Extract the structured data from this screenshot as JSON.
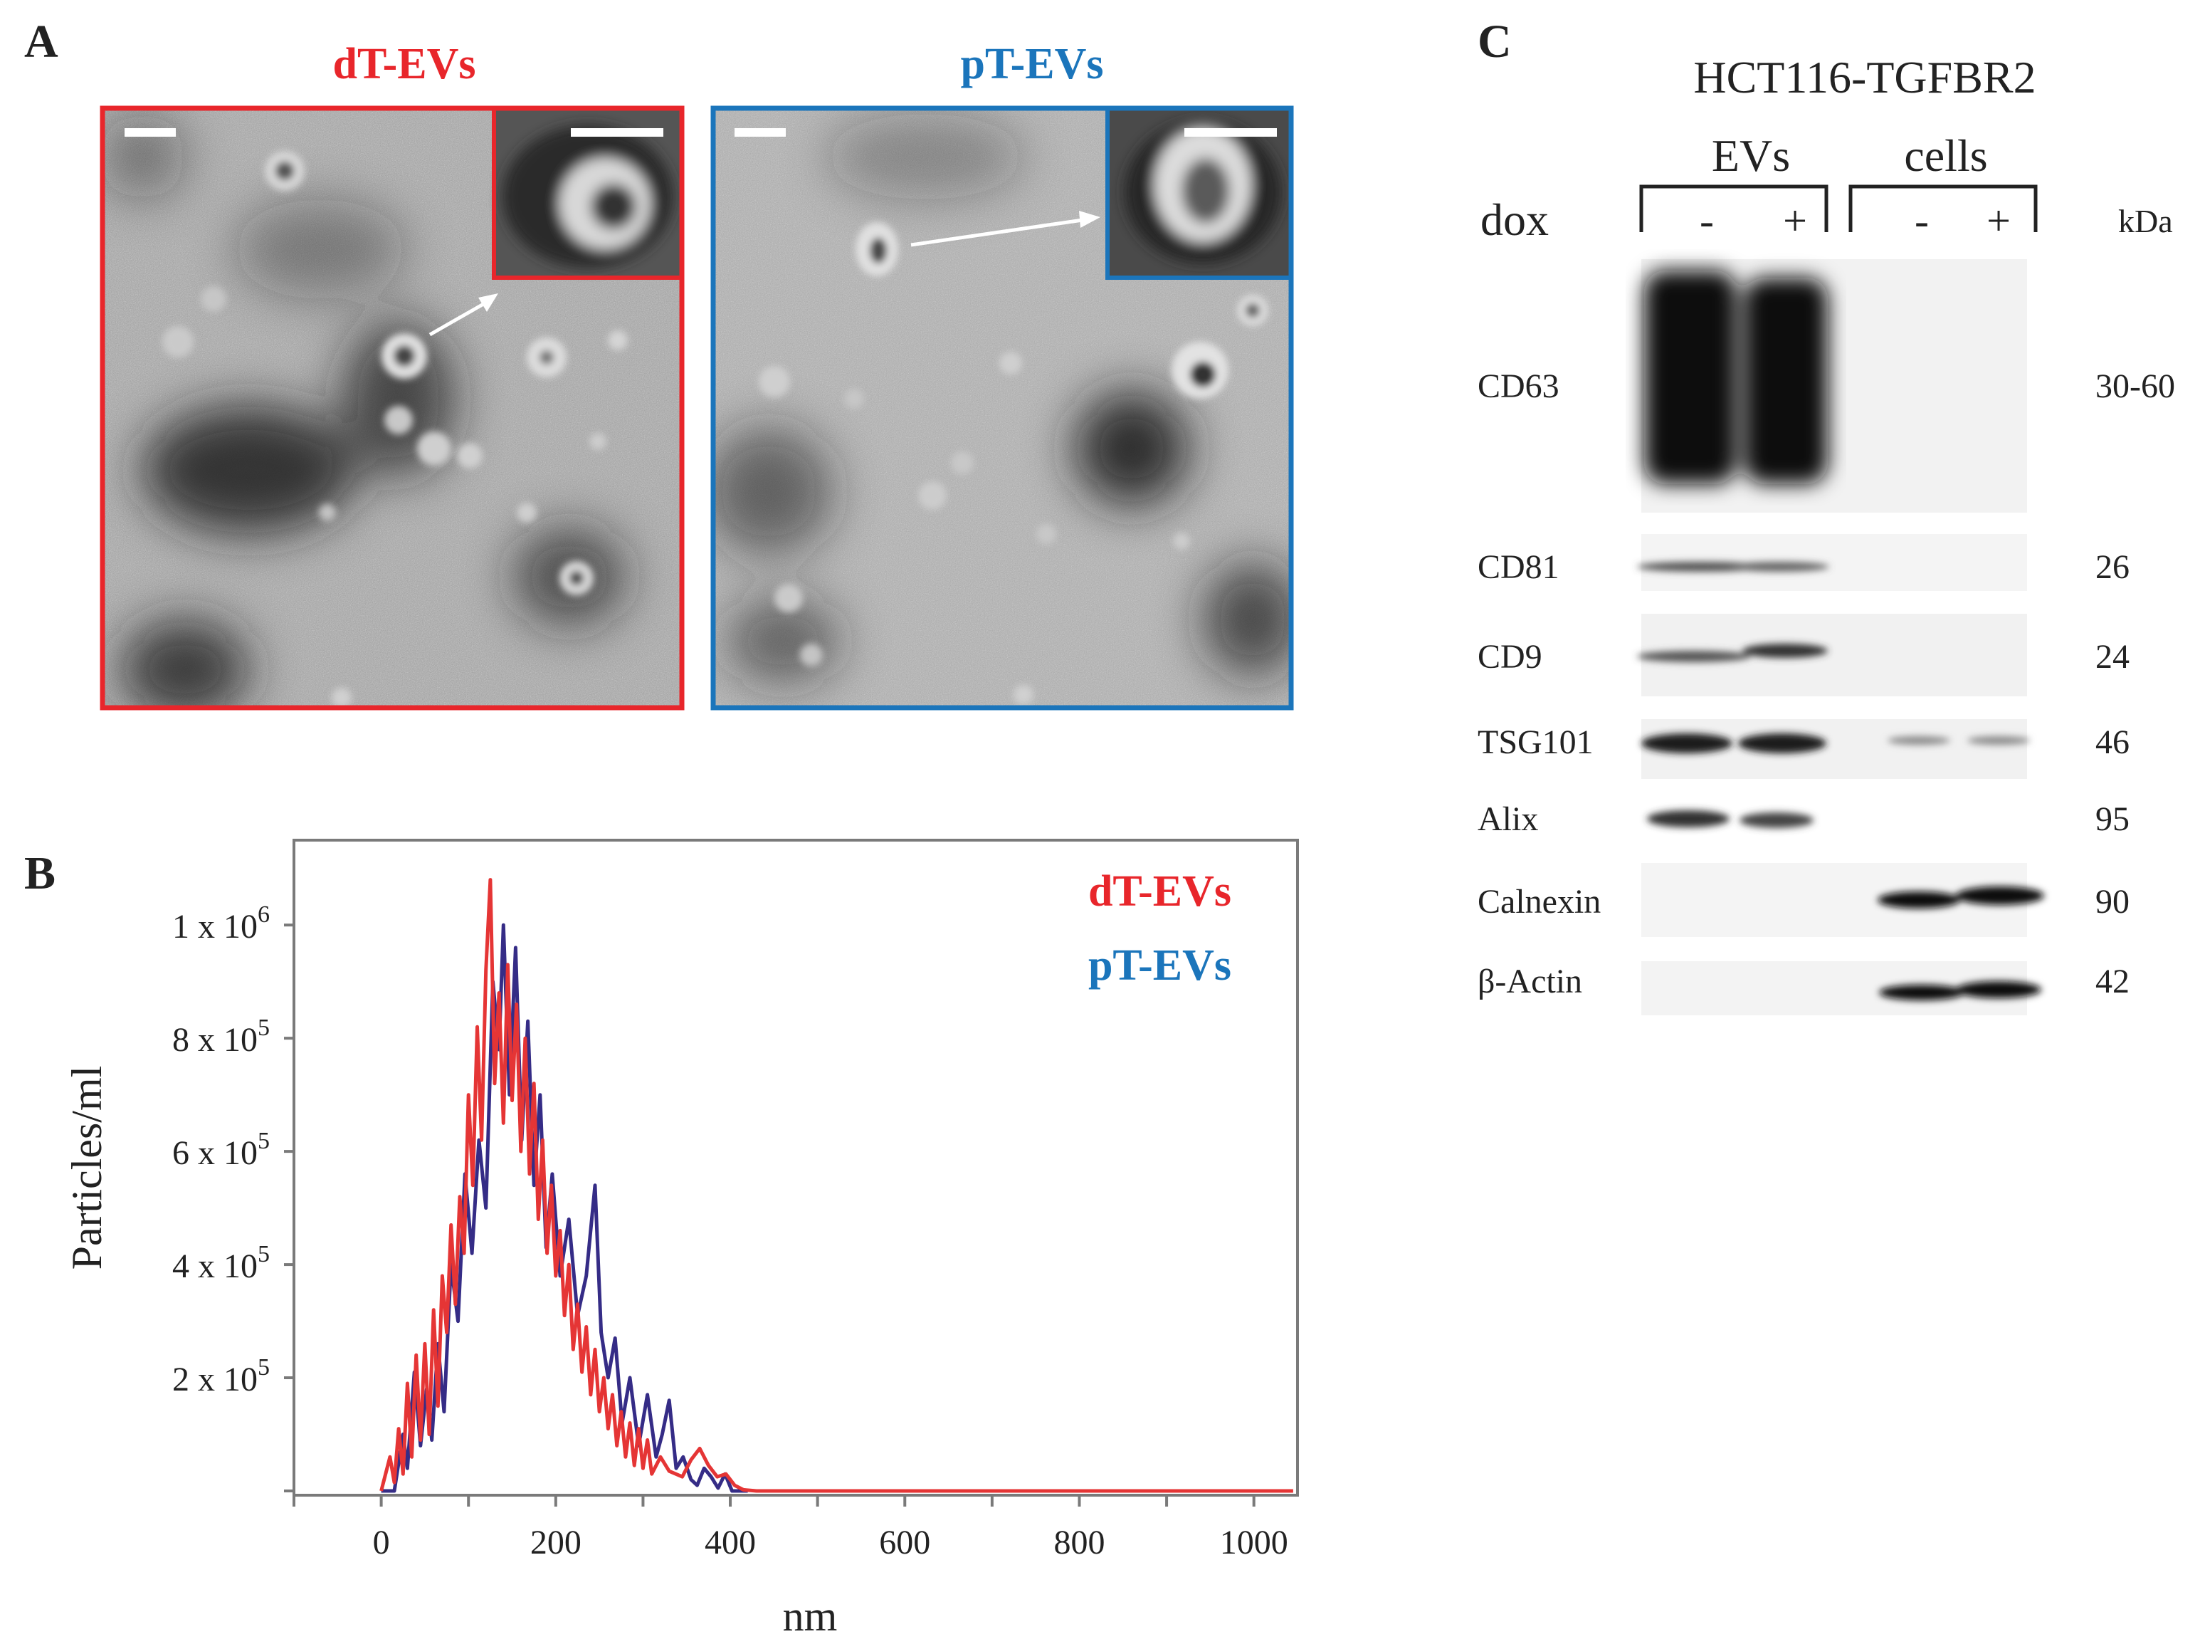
{
  "panels": {
    "a": {
      "letter": "A",
      "left_title": "dT-EVs",
      "right_title": "pT-EVs",
      "colors": {
        "left": "#e8262b",
        "right": "#1b75bb"
      }
    },
    "b": {
      "letter": "B"
    },
    "c": {
      "letter": "C",
      "title": "HCT116-TGFBR2",
      "group_evs": "EVs",
      "group_cells": "cells",
      "dox_label": "dox",
      "lane_signs": [
        "-",
        "+",
        "-",
        "+"
      ],
      "unit": "kDa",
      "rows": [
        {
          "protein": "CD63",
          "kda": "30-60"
        },
        {
          "protein": "CD81",
          "kda": "26"
        },
        {
          "protein": "CD9",
          "kda": "24"
        },
        {
          "protein": "TSG101",
          "kda": "46"
        },
        {
          "protein": "Alix",
          "kda": "95"
        },
        {
          "protein": "Calnexin",
          "kda": "90"
        },
        {
          "protein": "β-Actin",
          "kda": "42"
        }
      ]
    }
  },
  "chart_data": {
    "type": "line",
    "xlabel": "nm",
    "ylabel": "Particles/ml",
    "xlim": [
      -100,
      1050
    ],
    "ylim": [
      0,
      1150000
    ],
    "x_ticks": [
      0,
      200,
      400,
      600,
      800,
      1000
    ],
    "y_ticks": [
      {
        "value": 200000,
        "mant": "2 x 10",
        "exp": "5"
      },
      {
        "value": 400000,
        "mant": "4 x 10",
        "exp": "5"
      },
      {
        "value": 600000,
        "mant": "6 x 10",
        "exp": "5"
      },
      {
        "value": 800000,
        "mant": "8 x 10",
        "exp": "5"
      },
      {
        "value": 1000000,
        "mant": "1 x 10",
        "exp": "6"
      }
    ],
    "legend_position": "top-right",
    "series": [
      {
        "name": "dT-EVs",
        "color": "#e53535",
        "points": [
          [
            0,
            0
          ],
          [
            10,
            60000
          ],
          [
            15,
            15000
          ],
          [
            20,
            110000
          ],
          [
            25,
            30000
          ],
          [
            30,
            190000
          ],
          [
            35,
            60000
          ],
          [
            40,
            240000
          ],
          [
            45,
            90000
          ],
          [
            50,
            260000
          ],
          [
            55,
            100000
          ],
          [
            60,
            320000
          ],
          [
            65,
            150000
          ],
          [
            70,
            380000
          ],
          [
            75,
            280000
          ],
          [
            80,
            470000
          ],
          [
            85,
            330000
          ],
          [
            90,
            520000
          ],
          [
            95,
            420000
          ],
          [
            100,
            700000
          ],
          [
            105,
            540000
          ],
          [
            110,
            820000
          ],
          [
            115,
            620000
          ],
          [
            120,
            920000
          ],
          [
            125,
            1080000
          ],
          [
            130,
            720000
          ],
          [
            135,
            880000
          ],
          [
            140,
            650000
          ],
          [
            145,
            930000
          ],
          [
            150,
            690000
          ],
          [
            155,
            860000
          ],
          [
            160,
            600000
          ],
          [
            165,
            800000
          ],
          [
            170,
            560000
          ],
          [
            175,
            720000
          ],
          [
            180,
            480000
          ],
          [
            185,
            620000
          ],
          [
            190,
            420000
          ],
          [
            195,
            540000
          ],
          [
            200,
            380000
          ],
          [
            205,
            460000
          ],
          [
            210,
            310000
          ],
          [
            215,
            400000
          ],
          [
            220,
            250000
          ],
          [
            225,
            330000
          ],
          [
            230,
            210000
          ],
          [
            235,
            290000
          ],
          [
            240,
            170000
          ],
          [
            245,
            250000
          ],
          [
            250,
            140000
          ],
          [
            255,
            200000
          ],
          [
            260,
            110000
          ],
          [
            265,
            170000
          ],
          [
            270,
            80000
          ],
          [
            275,
            140000
          ],
          [
            280,
            60000
          ],
          [
            285,
            120000
          ],
          [
            290,
            45000
          ],
          [
            295,
            110000
          ],
          [
            300,
            40000
          ],
          [
            305,
            90000
          ],
          [
            310,
            30000
          ],
          [
            320,
            60000
          ],
          [
            330,
            35000
          ],
          [
            345,
            25000
          ],
          [
            355,
            55000
          ],
          [
            365,
            75000
          ],
          [
            375,
            45000
          ],
          [
            385,
            25000
          ],
          [
            395,
            30000
          ],
          [
            405,
            10000
          ],
          [
            415,
            2000
          ],
          [
            430,
            0
          ],
          [
            1045,
            0
          ]
        ]
      },
      {
        "name": "pT-EVs",
        "color": "#352c86",
        "points": [
          [
            0,
            0
          ],
          [
            15,
            0
          ],
          [
            25,
            100000
          ],
          [
            30,
            40000
          ],
          [
            38,
            210000
          ],
          [
            45,
            80000
          ],
          [
            52,
            180000
          ],
          [
            58,
            90000
          ],
          [
            65,
            260000
          ],
          [
            72,
            140000
          ],
          [
            80,
            400000
          ],
          [
            88,
            300000
          ],
          [
            96,
            560000
          ],
          [
            104,
            420000
          ],
          [
            112,
            620000
          ],
          [
            120,
            500000
          ],
          [
            128,
            900000
          ],
          [
            135,
            780000
          ],
          [
            140,
            1000000
          ],
          [
            147,
            700000
          ],
          [
            154,
            960000
          ],
          [
            161,
            620000
          ],
          [
            168,
            830000
          ],
          [
            175,
            540000
          ],
          [
            182,
            700000
          ],
          [
            189,
            430000
          ],
          [
            196,
            560000
          ],
          [
            205,
            380000
          ],
          [
            215,
            480000
          ],
          [
            225,
            310000
          ],
          [
            235,
            380000
          ],
          [
            245,
            540000
          ],
          [
            252,
            280000
          ],
          [
            260,
            200000
          ],
          [
            268,
            270000
          ],
          [
            276,
            120000
          ],
          [
            285,
            200000
          ],
          [
            295,
            80000
          ],
          [
            305,
            170000
          ],
          [
            315,
            60000
          ],
          [
            322,
            100000
          ],
          [
            330,
            160000
          ],
          [
            338,
            40000
          ],
          [
            346,
            60000
          ],
          [
            355,
            20000
          ],
          [
            362,
            10000
          ],
          [
            370,
            40000
          ],
          [
            378,
            25000
          ],
          [
            386,
            5000
          ],
          [
            394,
            30000
          ],
          [
            402,
            0
          ],
          [
            412,
            0
          ],
          [
            420,
            0
          ]
        ]
      }
    ]
  }
}
